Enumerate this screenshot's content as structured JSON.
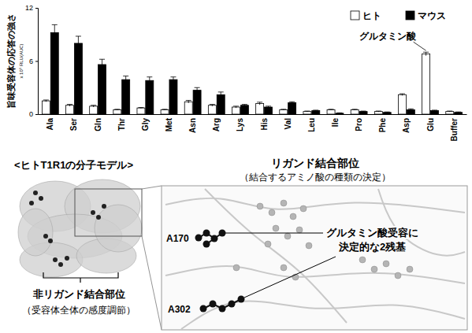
{
  "chart_data": {
    "type": "bar",
    "ylabel": "旨味受容体の応答の強さ",
    "ylabel_unit": "x 10⁵ RLU(AUC)",
    "categories": [
      "Ala",
      "Ser",
      "Gln",
      "Thr",
      "Gly",
      "Met",
      "Asn",
      "Arg",
      "Lys",
      "His",
      "Val",
      "Leu",
      "Ile",
      "Pro",
      "Phe",
      "Asp",
      "Glu",
      "Buffer"
    ],
    "series": [
      {
        "name": "ヒト",
        "color": "#ffffff",
        "values": [
          1.5,
          1.0,
          0.9,
          0.5,
          0.7,
          0.5,
          1.4,
          1.0,
          0.8,
          1.2,
          0.5,
          0.3,
          0.5,
          0.5,
          0.3,
          2.2,
          6.8,
          0.3
        ],
        "errors": [
          0.1,
          0.1,
          0.1,
          0.05,
          0.05,
          0.05,
          0.15,
          0.1,
          0.1,
          0.15,
          0.05,
          0.05,
          0.05,
          0.05,
          0.05,
          0.1,
          0.2,
          0.05
        ]
      },
      {
        "name": "マウス",
        "color": "#000000",
        "values": [
          9.2,
          8.0,
          5.6,
          3.9,
          3.8,
          3.9,
          2.7,
          2.2,
          1.0,
          0.8,
          1.3,
          0.4,
          0.1,
          0.3,
          0.2,
          0.5,
          0.4,
          0.2
        ],
        "errors": [
          0.9,
          0.8,
          0.6,
          0.4,
          0.4,
          0.3,
          0.3,
          0.3,
          0.1,
          0.1,
          0.1,
          0.05,
          0.05,
          0.05,
          0.05,
          0.1,
          0.05,
          0.05
        ]
      }
    ],
    "ylim": [
      0,
      12
    ],
    "yticks": [
      0,
      6,
      12
    ],
    "legend": "top-right",
    "annotations": [
      {
        "text": "グルタミン酸",
        "category": "Glu",
        "series": "ヒト"
      }
    ]
  },
  "diagram": {
    "model_title": "<ヒトT1R1の分子モデル>",
    "ligand_site": {
      "title": "リガンド結合部位",
      "subtitle": "（結合するアミノ酸の種類の決定）"
    },
    "residues": [
      "A170",
      "A302"
    ],
    "key_residues_note": [
      "グルタミン酸受容に",
      "決定的な2残基"
    ],
    "non_ligand_site": {
      "title": "非リガンド結合部位",
      "subtitle": "（受容体全体の感度調節）"
    }
  }
}
